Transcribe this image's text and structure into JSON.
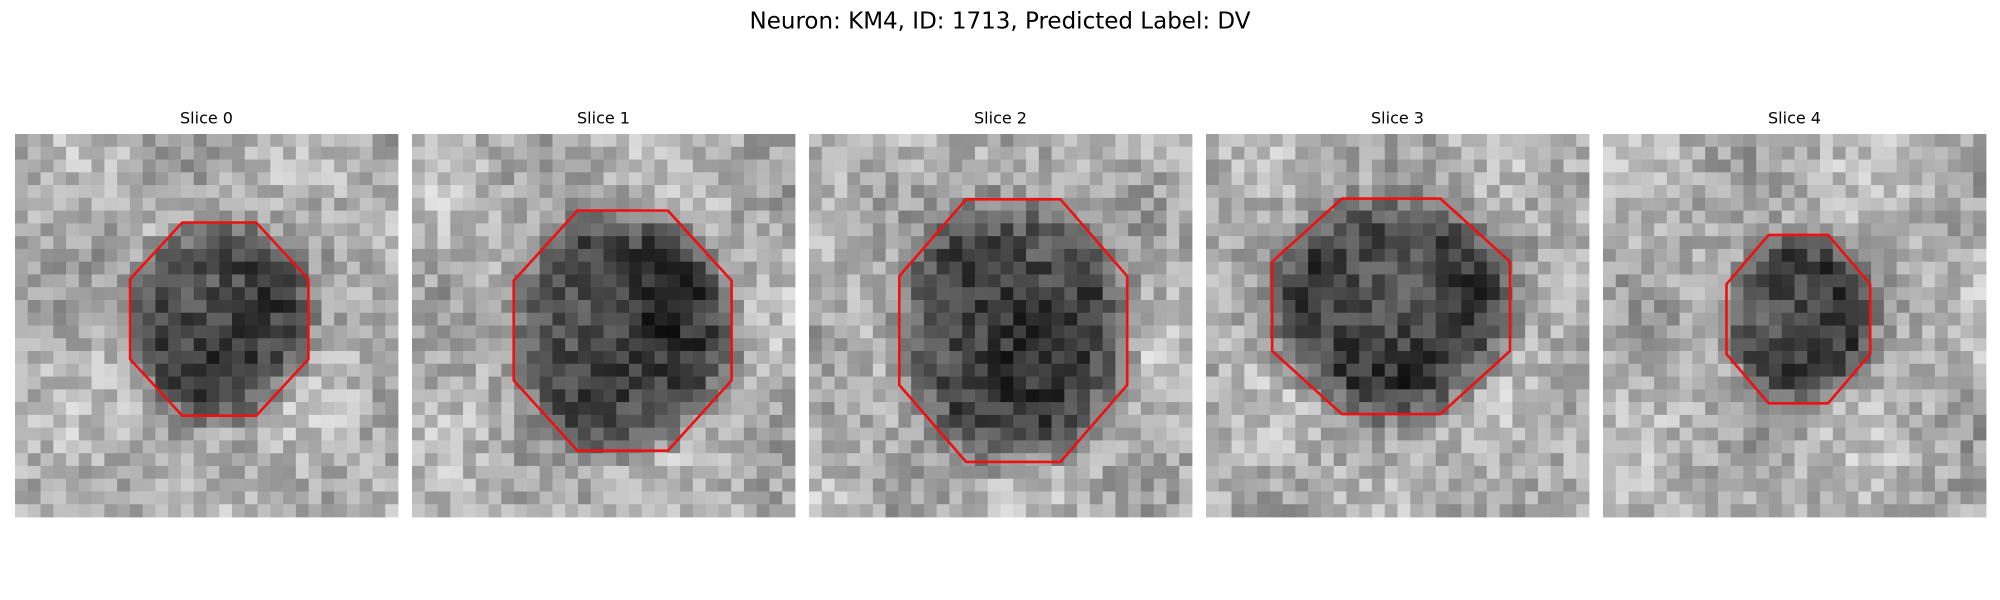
{
  "title": "Neuron: KM4, ID: 1713, Predicted Label: DV",
  "panels": [
    {
      "title": "Slice 0"
    },
    {
      "title": "Slice 1"
    },
    {
      "title": "Slice 2"
    },
    {
      "title": "Slice 3"
    },
    {
      "title": "Slice 4"
    }
  ]
}
